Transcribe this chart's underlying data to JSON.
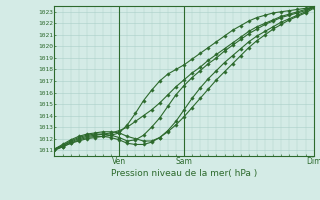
{
  "title": "",
  "xlabel": "Pression niveau de la mer( hPa )",
  "ylabel": "",
  "background_color": "#d4ebe6",
  "grid_color": "#aacfc8",
  "axis_color": "#2d6a2d",
  "text_color": "#2d6a2d",
  "line_color": "#2d6a2d",
  "marker_color": "#2d6a2d",
  "ylim": [
    1010.5,
    1023.5
  ],
  "yticks": [
    1011,
    1012,
    1013,
    1014,
    1015,
    1016,
    1017,
    1018,
    1019,
    1020,
    1021,
    1022,
    1023
  ],
  "xlim": [
    0,
    96
  ],
  "xtick_positions": [
    24,
    48,
    96
  ],
  "xtick_labels": [
    "Ven",
    "Sam",
    "Dim"
  ],
  "series": [
    {
      "x": [
        0,
        3,
        6,
        9,
        12,
        15,
        18,
        21,
        24,
        27,
        30,
        33,
        36,
        39,
        42,
        45,
        48,
        51,
        54,
        57,
        60,
        63,
        66,
        69,
        72,
        75,
        78,
        81,
        84,
        87,
        90,
        93,
        96
      ],
      "y": [
        1011.0,
        1011.3,
        1011.6,
        1011.8,
        1012.0,
        1012.1,
        1012.2,
        1012.3,
        1012.5,
        1013.2,
        1014.2,
        1015.3,
        1016.2,
        1017.0,
        1017.6,
        1018.0,
        1018.4,
        1018.9,
        1019.4,
        1019.9,
        1020.4,
        1020.9,
        1021.4,
        1021.8,
        1022.2,
        1022.5,
        1022.7,
        1022.9,
        1023.0,
        1023.1,
        1023.2,
        1023.3,
        1023.4
      ]
    },
    {
      "x": [
        0,
        3,
        6,
        9,
        12,
        15,
        18,
        21,
        24,
        27,
        30,
        33,
        36,
        39,
        42,
        45,
        48,
        51,
        54,
        57,
        60,
        63,
        66,
        69,
        72,
        75,
        78,
        81,
        84,
        87,
        90,
        93,
        96
      ],
      "y": [
        1011.1,
        1011.4,
        1011.7,
        1012.0,
        1012.2,
        1012.3,
        1012.4,
        1012.5,
        1012.7,
        1013.0,
        1013.5,
        1014.0,
        1014.5,
        1015.1,
        1015.8,
        1016.5,
        1017.1,
        1017.7,
        1018.2,
        1018.8,
        1019.3,
        1019.8,
        1020.3,
        1020.8,
        1021.3,
        1021.7,
        1022.0,
        1022.3,
        1022.6,
        1022.8,
        1023.0,
        1023.2,
        1023.4
      ]
    },
    {
      "x": [
        0,
        3,
        6,
        9,
        12,
        15,
        18,
        21,
        24,
        27,
        30,
        33,
        36,
        39,
        42,
        45,
        48,
        51,
        54,
        57,
        60,
        63,
        66,
        69,
        72,
        75,
        78,
        81,
        84,
        87,
        90,
        93,
        96
      ],
      "y": [
        1011.1,
        1011.4,
        1011.8,
        1012.1,
        1012.3,
        1012.4,
        1012.4,
        1012.3,
        1012.1,
        1011.8,
        1011.9,
        1012.3,
        1013.0,
        1013.8,
        1014.8,
        1015.8,
        1016.6,
        1017.3,
        1017.9,
        1018.5,
        1019.0,
        1019.6,
        1020.1,
        1020.6,
        1021.1,
        1021.5,
        1021.9,
        1022.2,
        1022.5,
        1022.7,
        1022.9,
        1023.1,
        1023.4
      ]
    },
    {
      "x": [
        0,
        3,
        6,
        9,
        12,
        15,
        18,
        21,
        24,
        27,
        30,
        33,
        36,
        39,
        42,
        45,
        48,
        51,
        54,
        57,
        60,
        63,
        66,
        69,
        72,
        75,
        78,
        81,
        84,
        87,
        90,
        93,
        96
      ],
      "y": [
        1011.1,
        1011.5,
        1011.9,
        1012.2,
        1012.4,
        1012.5,
        1012.6,
        1012.6,
        1012.5,
        1012.2,
        1012.0,
        1011.8,
        1011.8,
        1012.1,
        1012.7,
        1013.5,
        1014.5,
        1015.5,
        1016.4,
        1017.2,
        1017.9,
        1018.6,
        1019.2,
        1019.8,
        1020.4,
        1020.9,
        1021.3,
        1021.7,
        1022.1,
        1022.4,
        1022.7,
        1023.0,
        1023.4
      ]
    },
    {
      "x": [
        0,
        3,
        6,
        9,
        12,
        15,
        18,
        21,
        24,
        27,
        30,
        33,
        36,
        39,
        42,
        45,
        48,
        51,
        54,
        57,
        60,
        63,
        66,
        69,
        72,
        75,
        78,
        81,
        84,
        87,
        90,
        93,
        96
      ],
      "y": [
        1011.0,
        1011.3,
        1011.6,
        1011.9,
        1012.1,
        1012.2,
        1012.2,
        1012.1,
        1011.9,
        1011.6,
        1011.5,
        1011.5,
        1011.7,
        1012.1,
        1012.6,
        1013.2,
        1013.9,
        1014.7,
        1015.5,
        1016.3,
        1017.1,
        1017.8,
        1018.5,
        1019.2,
        1019.9,
        1020.5,
        1021.0,
        1021.5,
        1021.9,
        1022.3,
        1022.6,
        1022.9,
        1023.3
      ]
    }
  ]
}
